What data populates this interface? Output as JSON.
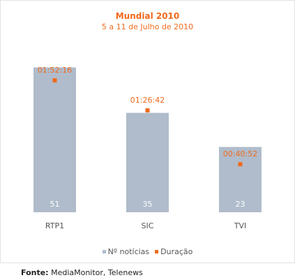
{
  "chart_data": {
    "type": "bar",
    "title": "Mundial 2010",
    "subtitle": "5 a 11 de Julho de 2010",
    "categories": [
      "RTP1",
      "SIC",
      "TVI"
    ],
    "series": [
      {
        "name": "Nº notícias",
        "type": "bar",
        "values": [
          51,
          35,
          23
        ],
        "color": "#b0bccb"
      },
      {
        "name": "Duração",
        "type": "point",
        "values": [
          6736,
          5202,
          2452
        ],
        "labels": [
          "01:52:16",
          "01:26:42",
          "00:40:52"
        ],
        "color": "#ef6a1c"
      }
    ],
    "ylim": [
      0,
      60
    ],
    "duration_ylim": [
      0,
      8700
    ],
    "grid": false,
    "legend_position": "bottom"
  },
  "source": {
    "label": "Fonte:",
    "text": " MediaMonitor, Telenews"
  }
}
